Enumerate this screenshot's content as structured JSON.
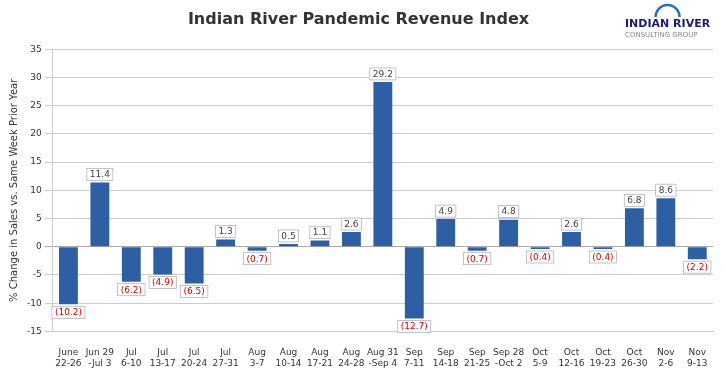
{
  "chart_data": {
    "type": "bar",
    "title": "Indian River Pandemic Revenue Index",
    "ylabel": "% Change in Sales vs. Same Week Prior Year",
    "categories": [
      "June\n22-26",
      "Jun 29\n-Jul 3",
      "Jul\n6-10",
      "Jul\n13-17",
      "Jul\n20-24",
      "Jul\n27-31",
      "Aug\n3-7",
      "Aug\n10-14",
      "Aug\n17-21",
      "Aug\n24-28",
      "Aug 31\n-Sep 4",
      "Sep\n7-11",
      "Sep\n14-18",
      "Sep\n21-25",
      "Sep 28\n-Oct 2",
      "Oct\n5-9",
      "Oct\n12-16",
      "Oct\n19-23",
      "Oct\n26-30",
      "Nov\n2-6",
      "Nov\n9-13"
    ],
    "values": [
      -10.2,
      11.4,
      -6.2,
      -4.9,
      -6.5,
      1.3,
      -0.7,
      0.5,
      1.1,
      2.6,
      29.2,
      -12.7,
      4.9,
      -0.7,
      4.8,
      -0.4,
      2.6,
      -0.4,
      6.8,
      8.6,
      -2.2
    ],
    "value_labels": [
      "(10.2)",
      "11.4",
      "(6.2)",
      "(4.9)",
      "(6.5)",
      "1.3",
      "(0.7)",
      "0.5",
      "1.1",
      "2.6",
      "29.2",
      "(12.7)",
      "4.9",
      "(0.7)",
      "4.8",
      "(0.4)",
      "2.6",
      "(0.4)",
      "6.8",
      "8.6",
      "(2.2)"
    ],
    "data_labels": true,
    "color": "#2E5FA3",
    "ylim": [
      -15,
      35
    ],
    "yticks": [
      -15,
      -10,
      -5,
      0,
      5,
      10,
      15,
      20,
      25,
      30,
      35
    ],
    "grid": true,
    "annotations": [
      {
        "text": "INDIAN RIVER",
        "color": "#1a1a6e"
      },
      {
        "text": "CONSULTING GROUP",
        "color": "#888888"
      }
    ]
  }
}
